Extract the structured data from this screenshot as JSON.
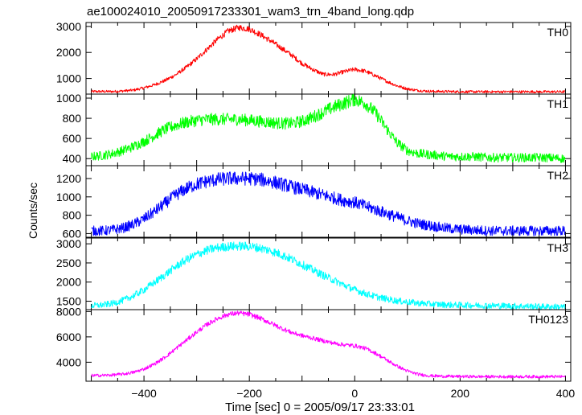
{
  "chart_data": {
    "type": "line",
    "title": "ae100024010_20050917233301_wam3_trn_4band_long.qdp",
    "xlabel": "Time [sec] 0 = 2005/09/17 23:33:01",
    "ylabel": "Counts/sec",
    "xlim": [
      -510,
      410
    ],
    "xticks": [
      -400,
      -200,
      0,
      200,
      400
    ],
    "x": [
      -500,
      -480,
      -460,
      -440,
      -420,
      -400,
      -380,
      -360,
      -340,
      -320,
      -300,
      -280,
      -260,
      -240,
      -220,
      -200,
      -180,
      -160,
      -140,
      -120,
      -100,
      -80,
      -60,
      -40,
      -20,
      0,
      20,
      40,
      60,
      80,
      100,
      120,
      140,
      160,
      180,
      200,
      220,
      240,
      260,
      280,
      300,
      320,
      340,
      360,
      380,
      400
    ],
    "panels": [
      {
        "name": "TH0",
        "color": "#ff0000",
        "ylim": [
          400,
          3150
        ],
        "yticks": [
          1000,
          2000,
          3000
        ],
        "values": [
          500,
          500,
          500,
          520,
          550,
          640,
          760,
          920,
          1140,
          1420,
          1750,
          2130,
          2510,
          2820,
          2960,
          2900,
          2700,
          2450,
          2180,
          1900,
          1580,
          1350,
          1160,
          1150,
          1260,
          1350,
          1280,
          1100,
          900,
          720,
          600,
          540,
          510,
          500,
          500,
          490,
          490,
          490,
          490,
          490,
          490,
          490,
          490,
          490,
          490,
          490
        ]
      },
      {
        "name": "TH1",
        "color": "#00ff00",
        "ylim": [
          330,
          1040
        ],
        "yticks": [
          400,
          600,
          800,
          1000
        ],
        "values": [
          420,
          430,
          450,
          480,
          520,
          570,
          630,
          690,
          730,
          760,
          780,
          790,
          790,
          790,
          790,
          780,
          770,
          760,
          750,
          750,
          770,
          810,
          860,
          910,
          950,
          990,
          950,
          850,
          700,
          560,
          480,
          450,
          440,
          430,
          420,
          420,
          420,
          415,
          410,
          410,
          410,
          410,
          410,
          410,
          405,
          400
        ]
      },
      {
        "name": "TH2",
        "color": "#0000ff",
        "ylim": [
          560,
          1340
        ],
        "yticks": [
          600,
          800,
          1000,
          1200
        ],
        "values": [
          630,
          630,
          640,
          660,
          700,
          760,
          840,
          930,
          1020,
          1090,
          1140,
          1170,
          1190,
          1200,
          1200,
          1200,
          1190,
          1170,
          1140,
          1110,
          1080,
          1050,
          1020,
          990,
          960,
          940,
          900,
          860,
          820,
          780,
          740,
          710,
          690,
          670,
          655,
          645,
          640,
          635,
          630,
          630,
          630,
          630,
          630,
          630,
          630,
          630
        ]
      },
      {
        "name": "TH3",
        "color": "#00ffff",
        "ylim": [
          1280,
          3150
        ],
        "yticks": [
          1500,
          2000,
          2500,
          3000
        ],
        "values": [
          1380,
          1400,
          1440,
          1520,
          1640,
          1800,
          1990,
          2190,
          2400,
          2580,
          2720,
          2830,
          2900,
          2930,
          2940,
          2930,
          2890,
          2820,
          2720,
          2600,
          2460,
          2320,
          2180,
          2050,
          1920,
          1800,
          1700,
          1620,
          1560,
          1510,
          1480,
          1450,
          1430,
          1415,
          1405,
          1400,
          1395,
          1390,
          1385,
          1380,
          1375,
          1370,
          1365,
          1360,
          1355,
          1350
        ]
      },
      {
        "name": "TH0123",
        "color": "#ff00ff",
        "ylim": [
          2500,
          8150
        ],
        "yticks": [
          4000,
          6000,
          8000
        ],
        "values": [
          2950,
          2960,
          2990,
          3060,
          3200,
          3460,
          3860,
          4400,
          5050,
          5720,
          6380,
          6980,
          7460,
          7780,
          7880,
          7770,
          7480,
          7100,
          6700,
          6350,
          6100,
          5900,
          5700,
          5500,
          5380,
          5300,
          5100,
          4700,
          4200,
          3700,
          3300,
          3050,
          2940,
          2900,
          2880,
          2870,
          2870,
          2860,
          2860,
          2860,
          2860,
          2860,
          2860,
          2860,
          2860,
          2860
        ]
      }
    ]
  }
}
